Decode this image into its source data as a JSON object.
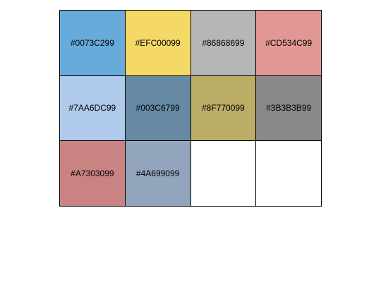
{
  "palette": {
    "swatches": [
      {
        "label": "#0073C299",
        "color": "#0073C299"
      },
      {
        "label": "#EFC00099",
        "color": "#EFC00099"
      },
      {
        "label": "#86868699",
        "color": "#86868699"
      },
      {
        "label": "#CD534C99",
        "color": "#CD534C99"
      },
      {
        "label": "#7AA6DC99",
        "color": "#7AA6DC99"
      },
      {
        "label": "#003C6799",
        "color": "#003C6799"
      },
      {
        "label": "#8F770099",
        "color": "#8F770099"
      },
      {
        "label": "#3B3B3B99",
        "color": "#3B3B3B99"
      },
      {
        "label": "#A7303099",
        "color": "#A7303099"
      },
      {
        "label": "#4A699099",
        "color": "#4A699099"
      }
    ]
  }
}
